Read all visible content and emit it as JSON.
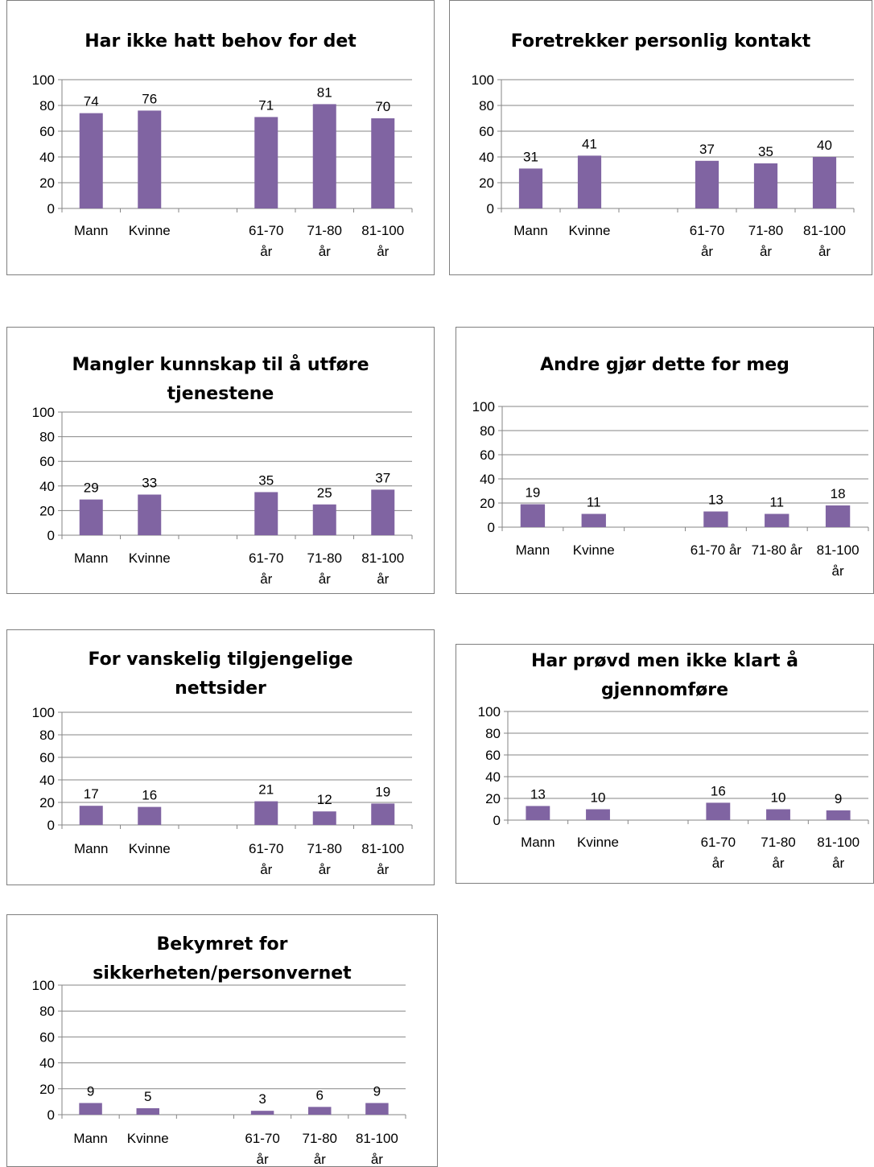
{
  "chart_data": [
    {
      "type": "bar",
      "title": [
        "Har ikke hatt behov for det"
      ],
      "categories": [
        [
          "Mann"
        ],
        [
          "Kvinne"
        ],
        [
          ""
        ],
        [
          "61-70",
          "år"
        ],
        [
          "71-80",
          "år"
        ],
        [
          "81-100",
          "år"
        ]
      ],
      "values": [
        74,
        76,
        null,
        71,
        81,
        70
      ],
      "ylim": [
        0,
        100
      ],
      "yticks": [
        0,
        20,
        40,
        60,
        80,
        100
      ],
      "bar_color": "#8064a2",
      "grid": true
    },
    {
      "type": "bar",
      "title": [
        "Foretrekker personlig kontakt"
      ],
      "categories": [
        [
          "Mann"
        ],
        [
          "Kvinne"
        ],
        [
          ""
        ],
        [
          "61-70",
          "år"
        ],
        [
          "71-80",
          "år"
        ],
        [
          "81-100",
          "år"
        ]
      ],
      "values": [
        31,
        41,
        null,
        37,
        35,
        40
      ],
      "ylim": [
        0,
        100
      ],
      "yticks": [
        0,
        20,
        40,
        60,
        80,
        100
      ],
      "bar_color": "#8064a2",
      "grid": true
    },
    {
      "type": "bar",
      "title": [
        "Mangler kunnskap til å utføre",
        "tjenestene"
      ],
      "categories": [
        [
          "Mann"
        ],
        [
          "Kvinne"
        ],
        [
          ""
        ],
        [
          "61-70",
          "år"
        ],
        [
          "71-80",
          "år"
        ],
        [
          "81-100",
          "år"
        ]
      ],
      "values": [
        29,
        33,
        null,
        35,
        25,
        37
      ],
      "ylim": [
        0,
        100
      ],
      "yticks": [
        0,
        20,
        40,
        60,
        80,
        100
      ],
      "bar_color": "#8064a2",
      "grid": true
    },
    {
      "type": "bar",
      "title": [
        "Andre gjør dette for meg"
      ],
      "categories": [
        [
          "Mann"
        ],
        [
          "Kvinne"
        ],
        [
          ""
        ],
        [
          "61-70 år"
        ],
        [
          "71-80 år"
        ],
        [
          "81-100",
          "år"
        ]
      ],
      "values": [
        19,
        11,
        null,
        13,
        11,
        18
      ],
      "ylim": [
        0,
        100
      ],
      "yticks": [
        0,
        20,
        40,
        60,
        80,
        100
      ],
      "bar_color": "#8064a2",
      "grid": true
    },
    {
      "type": "bar",
      "title": [
        "For vanskelig tilgjengelige",
        "nettsider"
      ],
      "categories": [
        [
          "Mann"
        ],
        [
          "Kvinne"
        ],
        [
          ""
        ],
        [
          "61-70",
          "år"
        ],
        [
          "71-80",
          "år"
        ],
        [
          "81-100",
          "år"
        ]
      ],
      "values": [
        17,
        16,
        null,
        21,
        12,
        19
      ],
      "ylim": [
        0,
        100
      ],
      "yticks": [
        0,
        20,
        40,
        60,
        80,
        100
      ],
      "bar_color": "#8064a2",
      "grid": true
    },
    {
      "type": "bar",
      "title": [
        "Har prøvd men ikke klart å",
        "gjennomføre"
      ],
      "categories": [
        [
          "Mann"
        ],
        [
          "Kvinne"
        ],
        [
          ""
        ],
        [
          "61-70",
          "år"
        ],
        [
          "71-80",
          "år"
        ],
        [
          "81-100",
          "år"
        ]
      ],
      "values": [
        13,
        10,
        null,
        16,
        10,
        9
      ],
      "ylim": [
        0,
        100
      ],
      "yticks": [
        0,
        20,
        40,
        60,
        80,
        100
      ],
      "bar_color": "#8064a2",
      "grid": true
    },
    {
      "type": "bar",
      "title": [
        "Bekymret for",
        "sikkerheten/personvernet"
      ],
      "categories": [
        [
          "Mann"
        ],
        [
          "Kvinne"
        ],
        [
          ""
        ],
        [
          "61-70",
          "år"
        ],
        [
          "71-80",
          "år"
        ],
        [
          "81-100",
          "år"
        ]
      ],
      "values": [
        9,
        5,
        null,
        3,
        6,
        9
      ],
      "ylim": [
        0,
        100
      ],
      "yticks": [
        0,
        20,
        40,
        60,
        80,
        100
      ],
      "bar_color": "#8064a2",
      "grid": true
    }
  ]
}
